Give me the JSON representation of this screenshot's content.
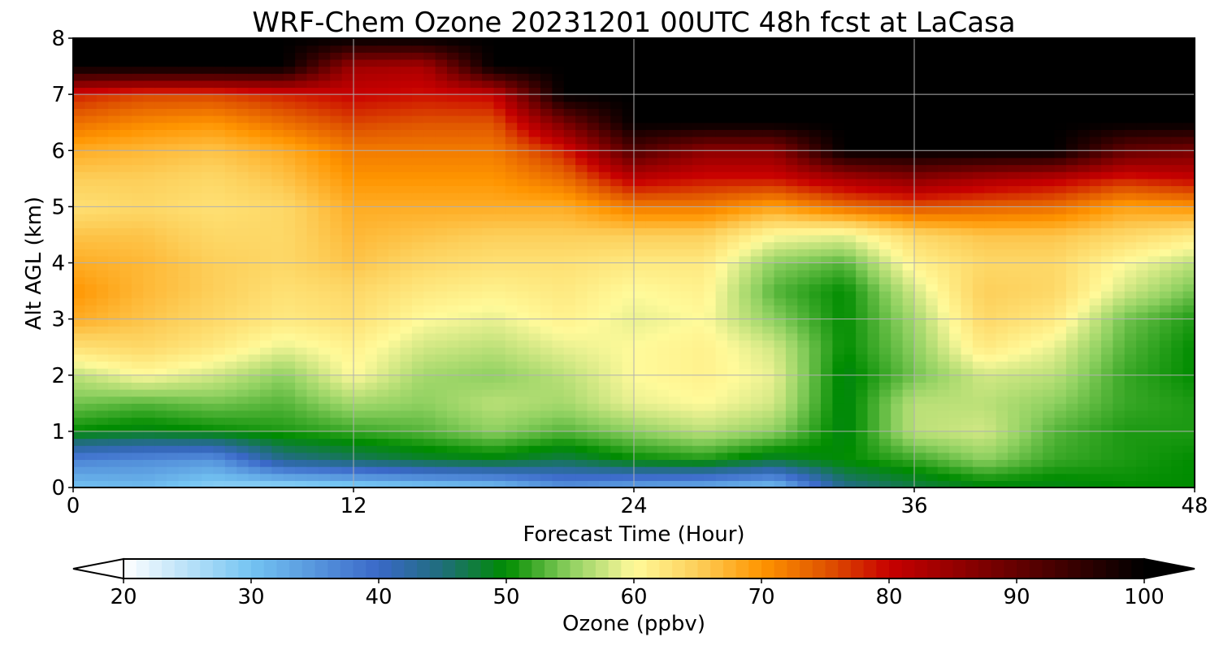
{
  "chart_data": {
    "type": "heatmap",
    "title": "WRF-Chem Ozone  20231201 00UTC 48h fcst at LaCasa",
    "xlabel": "Forecast Time (Hour)",
    "ylabel": "Alt AGL (km)",
    "xlim": [
      0,
      48
    ],
    "ylim": [
      0,
      8
    ],
    "x_ticks": [
      0,
      12,
      24,
      36,
      48
    ],
    "y_ticks": [
      0,
      1,
      2,
      3,
      4,
      5,
      6,
      7,
      8
    ],
    "grid": true,
    "x": [
      0,
      3,
      6,
      9,
      12,
      15,
      18,
      21,
      24,
      27,
      30,
      33,
      36,
      39,
      42,
      45,
      48
    ],
    "y": [
      0,
      0.5,
      1,
      1.5,
      2,
      2.5,
      3,
      3.5,
      4,
      4.5,
      5,
      5.5,
      6,
      6.5,
      7,
      7.5,
      8
    ],
    "z": [
      [
        30,
        31,
        28,
        27,
        28,
        29,
        30,
        35,
        33,
        32,
        30,
        44,
        47,
        49,
        49,
        50,
        50
      ],
      [
        37,
        36,
        35,
        44,
        46,
        48,
        49,
        47,
        50,
        51,
        48,
        50,
        52,
        55,
        52,
        51,
        50
      ],
      [
        50,
        49,
        50,
        51,
        52,
        53,
        55,
        53,
        55,
        57,
        55,
        49,
        57,
        58,
        53,
        51,
        51
      ],
      [
        54,
        53,
        54,
        53,
        56,
        55,
        57,
        56,
        59,
        60,
        58,
        49,
        57,
        57,
        55,
        52,
        51
      ],
      [
        57,
        60,
        58,
        55,
        60,
        56,
        55,
        57,
        60,
        61,
        59,
        49,
        54,
        58,
        57,
        52,
        50
      ],
      [
        63,
        64,
        62,
        59,
        61,
        58,
        57,
        59,
        60,
        61,
        58,
        50,
        55,
        62,
        59,
        53,
        50
      ],
      [
        68,
        66,
        64,
        62,
        63,
        60,
        59,
        61,
        59,
        60,
        55,
        50,
        56,
        64,
        62,
        54,
        51
      ],
      [
        70,
        67,
        65,
        63,
        64,
        62,
        61,
        62,
        60,
        61,
        53,
        50,
        58,
        65,
        64,
        58,
        54
      ],
      [
        68,
        67,
        65,
        64,
        66,
        64,
        63,
        63,
        62,
        62,
        55,
        53,
        61,
        64,
        64,
        60,
        57
      ],
      [
        66,
        66,
        64,
        64,
        67,
        66,
        65,
        65,
        65,
        65,
        60,
        59,
        64,
        66,
        66,
        64,
        62
      ],
      [
        63,
        64,
        63,
        64,
        68,
        68,
        68,
        68,
        72,
        72,
        69,
        73,
        75,
        74,
        73,
        69,
        70
      ],
      [
        65,
        65,
        64,
        66,
        70,
        70,
        70,
        73,
        81,
        79,
        79,
        83,
        86,
        83,
        81,
        78,
        80
      ],
      [
        68,
        67,
        66,
        68,
        72,
        72,
        72,
        78,
        92,
        86,
        86,
        100,
        100,
        100,
        100,
        90,
        88
      ],
      [
        73,
        71,
        70,
        73,
        76,
        75,
        75,
        88,
        100,
        100,
        100,
        100,
        100,
        100,
        100,
        100,
        100
      ],
      [
        78,
        76,
        76,
        78,
        80,
        79,
        80,
        100,
        100,
        100,
        100,
        100,
        100,
        100,
        100,
        100,
        100
      ],
      [
        100,
        100,
        100,
        100,
        84,
        83,
        100,
        100,
        100,
        100,
        100,
        100,
        100,
        100,
        100,
        100,
        100
      ],
      [
        100,
        100,
        100,
        100,
        100,
        100,
        100,
        100,
        100,
        100,
        100,
        100,
        100,
        100,
        100,
        100,
        100
      ]
    ],
    "colorbar": {
      "label": "Ozone  (ppbv)",
      "ticks": [
        20,
        30,
        40,
        50,
        60,
        70,
        80,
        90,
        100
      ],
      "range": [
        20,
        100
      ],
      "extend": "both",
      "color_stops": [
        [
          20,
          "#ffffff"
        ],
        [
          30,
          "#74c4f2"
        ],
        [
          40,
          "#3a68c8"
        ],
        [
          45,
          "#1f6e7a"
        ],
        [
          50,
          "#008c00"
        ],
        [
          55,
          "#8ed060"
        ],
        [
          59,
          "#e8f090"
        ],
        [
          60,
          "#fffa9a"
        ],
        [
          65,
          "#fdcf5a"
        ],
        [
          70,
          "#ff9500"
        ],
        [
          75,
          "#e05500"
        ],
        [
          80,
          "#c80000"
        ],
        [
          90,
          "#640000"
        ],
        [
          100,
          "#000000"
        ]
      ]
    }
  }
}
